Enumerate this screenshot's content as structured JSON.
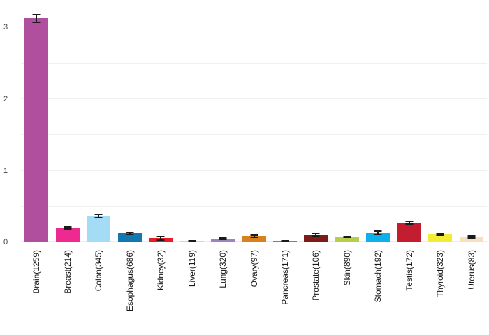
{
  "chart_data": {
    "type": "bar",
    "title": "",
    "xlabel": "",
    "ylabel": "",
    "categories": [
      "Brain(1259)",
      "Breast(214)",
      "Colon(345)",
      "Esophagus(686)",
      "Kidney(32)",
      "Liver(119)",
      "Lung(320)",
      "Ovary(97)",
      "Pancreas(171)",
      "Prostate(106)",
      "Skin(890)",
      "Stomach(192)",
      "Testis(172)",
      "Thyroid(323)",
      "Uterus(83)"
    ],
    "counts": [
      1259,
      214,
      345,
      686,
      32,
      119,
      320,
      97,
      171,
      106,
      890,
      192,
      172,
      323,
      83
    ],
    "values": [
      3.13,
      0.2,
      0.37,
      0.125,
      0.055,
      0.015,
      0.045,
      0.085,
      0.018,
      0.1,
      0.075,
      0.13,
      0.27,
      0.11,
      0.075
    ],
    "errors": [
      0.055,
      0.015,
      0.025,
      0.015,
      0.025,
      0.008,
      0.01,
      0.012,
      0.006,
      0.015,
      0.008,
      0.025,
      0.02,
      0.008,
      0.015
    ],
    "colors": [
      "#b04f9e",
      "#ec2a90",
      "#a5dcf5",
      "#1278b2",
      "#ea1c25",
      "#d4d0e8",
      "#9b85c1",
      "#d8821f",
      "#6b80ab",
      "#7d1b17",
      "#b6cf4a",
      "#0cb1ec",
      "#c21e30",
      "#f4eb35",
      "#f6e0c3"
    ],
    "error_bar_color": "#1a1a1a",
    "yticks": [
      0,
      1,
      2,
      3
    ],
    "ylim": [
      0,
      3.385
    ],
    "gridline_step": 0.5,
    "grid": "on",
    "gridline_color": "#f0f0f0",
    "legend": "none",
    "background": "#ffffff"
  }
}
